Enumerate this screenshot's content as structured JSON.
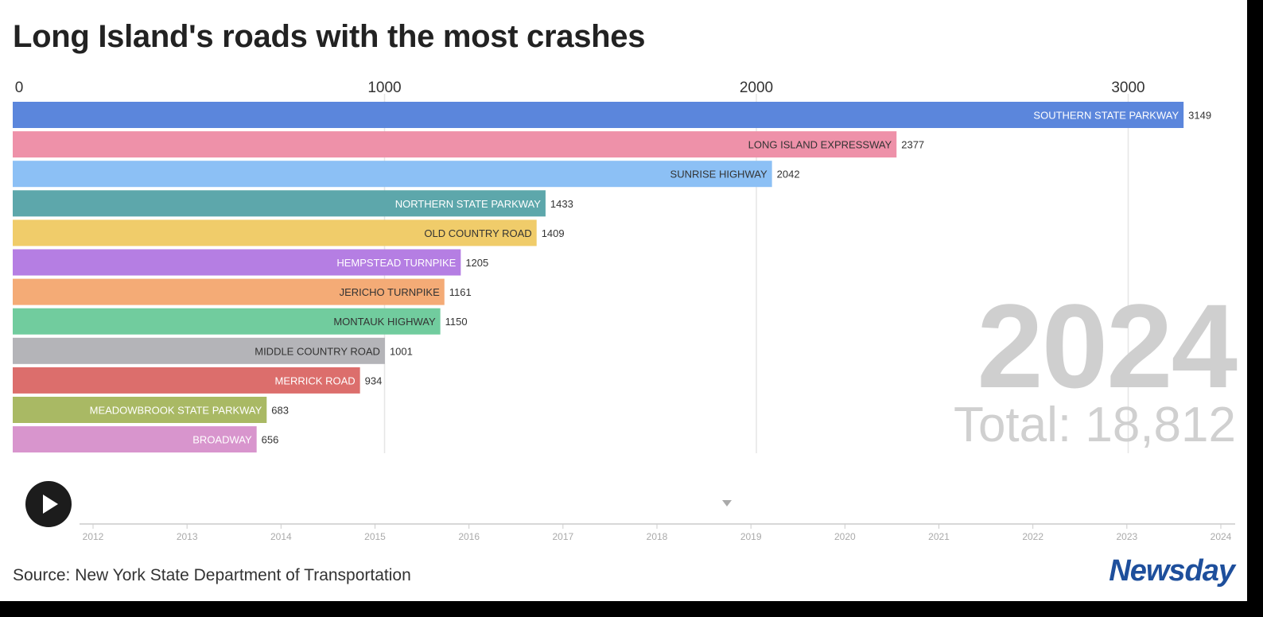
{
  "header": {
    "title": "Long Island's roads with the most crashes"
  },
  "chart_data": {
    "type": "bar",
    "orientation": "horizontal",
    "title": "Long Island's roads with the most crashes",
    "year": "2024",
    "total_label": "Total: 18,812",
    "x_ticks": [
      0,
      1000,
      2000,
      3000
    ],
    "xlim": [
      0,
      3300
    ],
    "gridlines": true,
    "categories": [
      "SOUTHERN STATE PARKWAY",
      "LONG ISLAND EXPRESSWAY",
      "SUNRISE HIGHWAY",
      "NORTHERN STATE PARKWAY",
      "OLD COUNTRY ROAD",
      "HEMPSTEAD TURNPIKE",
      "JERICHO TURNPIKE",
      "MONTAUK HIGHWAY",
      "MIDDLE COUNTRY ROAD",
      "MERRICK ROAD",
      "MEADOWBROOK STATE PARKWAY",
      "BROADWAY"
    ],
    "values": [
      3149,
      2377,
      2042,
      1433,
      1409,
      1205,
      1161,
      1150,
      1001,
      934,
      683,
      656
    ],
    "colors": [
      "#5b86dc",
      "#ee91a9",
      "#8cc0f5",
      "#5da7ab",
      "#f0cc6a",
      "#b57ee3",
      "#f4ab76",
      "#71cc9e",
      "#b4b4b8",
      "#dc6e6c",
      "#a9b964",
      "#d895cd"
    ],
    "label_styles": [
      "light",
      "dark",
      "dark",
      "light",
      "dark",
      "light",
      "dark",
      "dark",
      "dark",
      "light",
      "light",
      "light"
    ]
  },
  "timeline": {
    "years": [
      "2012",
      "2013",
      "2014",
      "2015",
      "2016",
      "2017",
      "2018",
      "2019",
      "2020",
      "2021",
      "2022",
      "2023",
      "2024"
    ],
    "play_label": "Play"
  },
  "footer": {
    "source": "Source: New York State Department of Transportation",
    "logo": "Newsday"
  }
}
